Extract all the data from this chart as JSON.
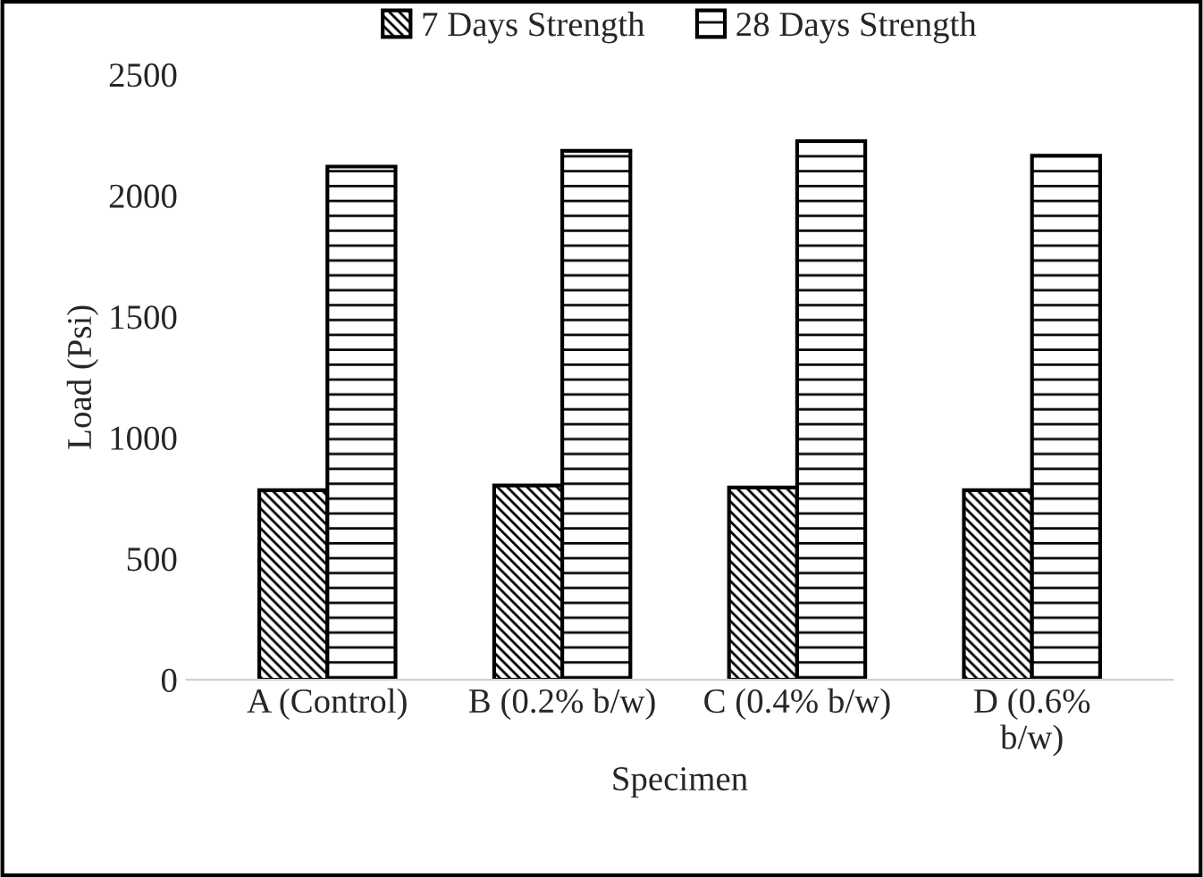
{
  "chart_data": {
    "type": "bar",
    "xlabel": "Specimen",
    "ylabel": "Load (Psi)",
    "categories": [
      "A (Control)",
      "B (0.2% b/w)",
      "C (0.4% b/w)",
      "D (0.6%\nb/w)"
    ],
    "series": [
      {
        "name": "7 Days Strength",
        "color": "#000000",
        "values": [
          783,
          802,
          794,
          783
        ]
      },
      {
        "name": "28 Days Strength",
        "color": "#000000",
        "values": [
          2120,
          2185,
          2225,
          2165
        ]
      }
    ],
    "ylim": [
      0,
      2500
    ],
    "yticks": [
      0,
      500,
      1000,
      1500,
      2000,
      2500
    ],
    "grid": false,
    "legend": "top"
  }
}
